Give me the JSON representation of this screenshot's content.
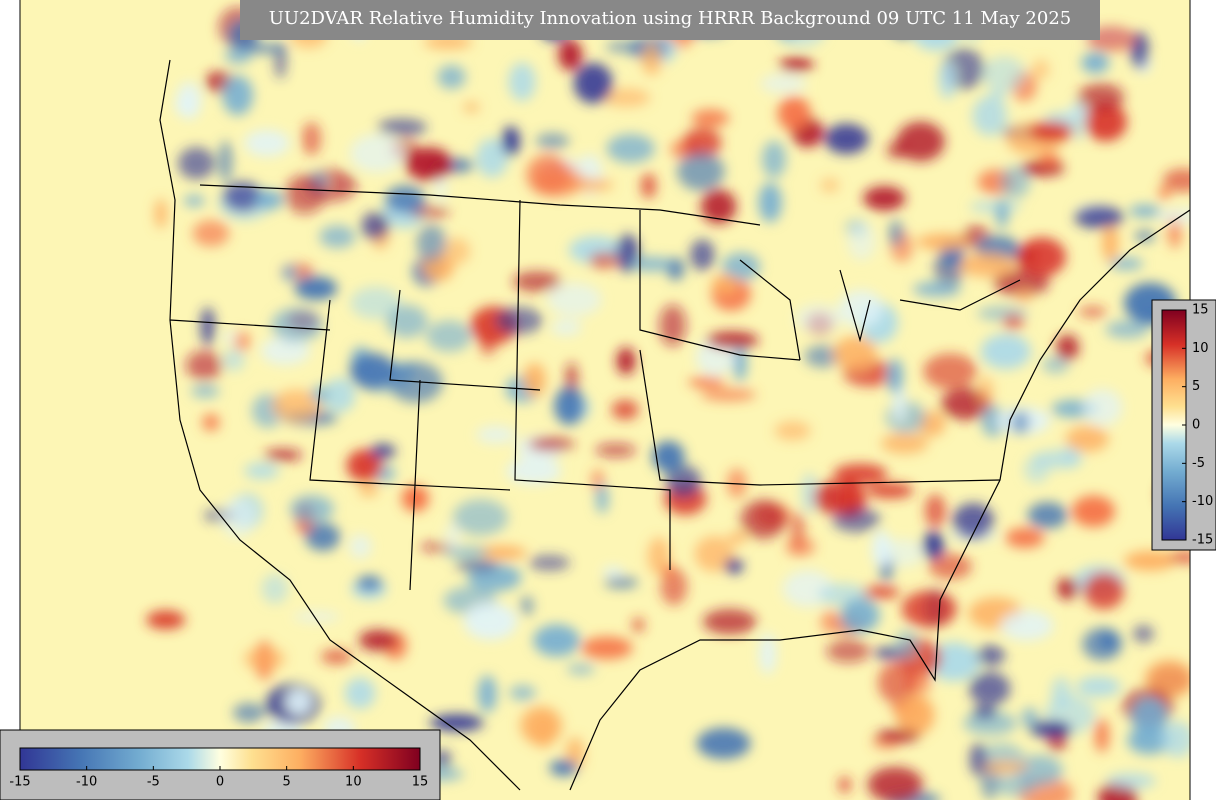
{
  "title": "UU2DVAR Relative Humidity Innovation using HRRR Background 09 UTC 11 May 2025",
  "colorbar_right": {
    "ticks": [
      15,
      10,
      5,
      0,
      -5,
      -10,
      -15
    ]
  },
  "colorbar_bottom": {
    "ticks": [
      -15,
      -10,
      -5,
      0,
      5,
      10,
      15
    ]
  }
}
